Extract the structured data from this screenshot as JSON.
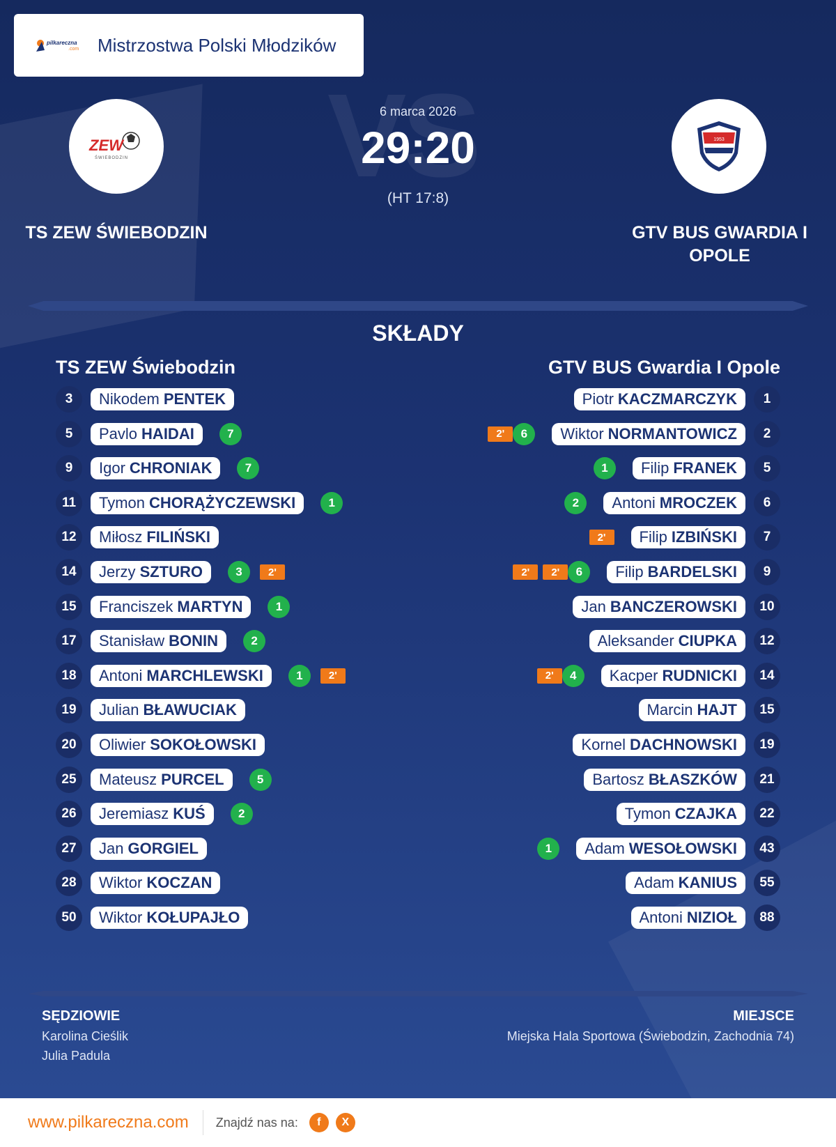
{
  "tournament": {
    "title": "Mistrzostwa Polski Młodzików",
    "brand": "pilkareczna.com"
  },
  "match": {
    "date": "6 marca 2026",
    "score": "29:20",
    "halftime": "(HT 17:8)",
    "vs_text": "VS"
  },
  "home": {
    "name_upper": "TS ZEW ŚWIEBODZIN",
    "name": "TS ZEW Świebodzin",
    "logo_text": "ZEW",
    "logo_subtext": "ŚWIEBODZIN",
    "players": [
      {
        "num": "3",
        "first": "Nikodem",
        "last": "PENTEK",
        "goals": "",
        "penalties": []
      },
      {
        "num": "5",
        "first": "Pavlo",
        "last": "HAIDAI",
        "goals": "7",
        "penalties": []
      },
      {
        "num": "9",
        "first": "Igor",
        "last": "CHRONIAK",
        "goals": "7",
        "penalties": []
      },
      {
        "num": "11",
        "first": "Tymon",
        "last": "CHORĄŻYCZEWSKI",
        "goals": "1",
        "penalties": []
      },
      {
        "num": "12",
        "first": "Miłosz",
        "last": "FILIŃSKI",
        "goals": "",
        "penalties": []
      },
      {
        "num": "14",
        "first": "Jerzy",
        "last": "SZTURO",
        "goals": "3",
        "penalties": [
          "2'"
        ]
      },
      {
        "num": "15",
        "first": "Franciszek",
        "last": "MARTYN",
        "goals": "1",
        "penalties": []
      },
      {
        "num": "17",
        "first": "Stanisław",
        "last": "BONIN",
        "goals": "2",
        "penalties": []
      },
      {
        "num": "18",
        "first": "Antoni",
        "last": "MARCHLEWSKI",
        "goals": "1",
        "penalties": [
          "2'"
        ]
      },
      {
        "num": "19",
        "first": "Julian",
        "last": "BŁAWUCIAK",
        "goals": "",
        "penalties": []
      },
      {
        "num": "20",
        "first": "Oliwier",
        "last": "SOKOŁOWSKI",
        "goals": "",
        "penalties": []
      },
      {
        "num": "25",
        "first": "Mateusz",
        "last": "PURCEL",
        "goals": "5",
        "penalties": []
      },
      {
        "num": "26",
        "first": "Jeremiasz",
        "last": "KUŚ",
        "goals": "2",
        "penalties": []
      },
      {
        "num": "27",
        "first": "Jan",
        "last": "GORGIEL",
        "goals": "",
        "penalties": []
      },
      {
        "num": "28",
        "first": "Wiktor",
        "last": "KOCZAN",
        "goals": "",
        "penalties": []
      },
      {
        "num": "50",
        "first": "Wiktor",
        "last": "KOŁUPAJŁO",
        "goals": "",
        "penalties": []
      }
    ]
  },
  "away": {
    "name_upper": "GTV BUS GWARDIA I OPOLE",
    "name": "GTV BUS Gwardia I Opole",
    "logo_text": "GWARDIA OPOLE",
    "players": [
      {
        "num": "1",
        "first": "Piotr",
        "last": "KACZMARCZYK",
        "goals": "",
        "penalties": []
      },
      {
        "num": "2",
        "first": "Wiktor",
        "last": "NORMANTOWICZ",
        "goals": "6",
        "penalties": [
          "2'"
        ]
      },
      {
        "num": "5",
        "first": "Filip",
        "last": "FRANEK",
        "goals": "1",
        "penalties": []
      },
      {
        "num": "6",
        "first": "Antoni",
        "last": "MROCZEK",
        "goals": "2",
        "penalties": []
      },
      {
        "num": "7",
        "first": "Filip",
        "last": "IZBIŃSKI",
        "goals": "",
        "penalties": [
          "2'"
        ]
      },
      {
        "num": "9",
        "first": "Filip",
        "last": "BARDELSKI",
        "goals": "6",
        "penalties": [
          "2'",
          "2'"
        ]
      },
      {
        "num": "10",
        "first": "Jan",
        "last": "BANCZEROWSKI",
        "goals": "",
        "penalties": []
      },
      {
        "num": "12",
        "first": "Aleksander",
        "last": "CIUPKA",
        "goals": "",
        "penalties": []
      },
      {
        "num": "14",
        "first": "Kacper",
        "last": "RUDNICKI",
        "goals": "4",
        "penalties": [
          "2'"
        ]
      },
      {
        "num": "15",
        "first": "Marcin",
        "last": "HAJT",
        "goals": "",
        "penalties": []
      },
      {
        "num": "19",
        "first": "Kornel",
        "last": "DACHNOWSKI",
        "goals": "",
        "penalties": []
      },
      {
        "num": "21",
        "first": "Bartosz",
        "last": "BŁASZKÓW",
        "goals": "",
        "penalties": []
      },
      {
        "num": "22",
        "first": "Tymon",
        "last": "CZAJKA",
        "goals": "",
        "penalties": []
      },
      {
        "num": "43",
        "first": "Adam",
        "last": "WESOŁOWSKI",
        "goals": "1",
        "penalties": []
      },
      {
        "num": "55",
        "first": "Adam",
        "last": "KANIUS",
        "goals": "",
        "penalties": []
      },
      {
        "num": "88",
        "first": "Antoni",
        "last": "NIZIOŁ",
        "goals": "",
        "penalties": []
      }
    ]
  },
  "lineups_title": "SKŁADY",
  "referees": {
    "title": "SĘDZIOWIE",
    "names": [
      "Karolina Cieślik",
      "Julia Padula"
    ]
  },
  "venue": {
    "title": "MIEJSCE",
    "text": "Miejska Hala Sportowa (Świebodzin, Zachodnia 74)"
  },
  "footer": {
    "url": "www.pilkareczna.com",
    "find_us": "Znajdź nas na:",
    "social": [
      {
        "name": "facebook-icon",
        "glyph": "f"
      },
      {
        "name": "x-icon",
        "glyph": "X"
      }
    ]
  },
  "colors": {
    "background": "#1c3373",
    "goal": "#22b14c",
    "penalty": "#f07a1a",
    "accent": "#f07a1a"
  }
}
